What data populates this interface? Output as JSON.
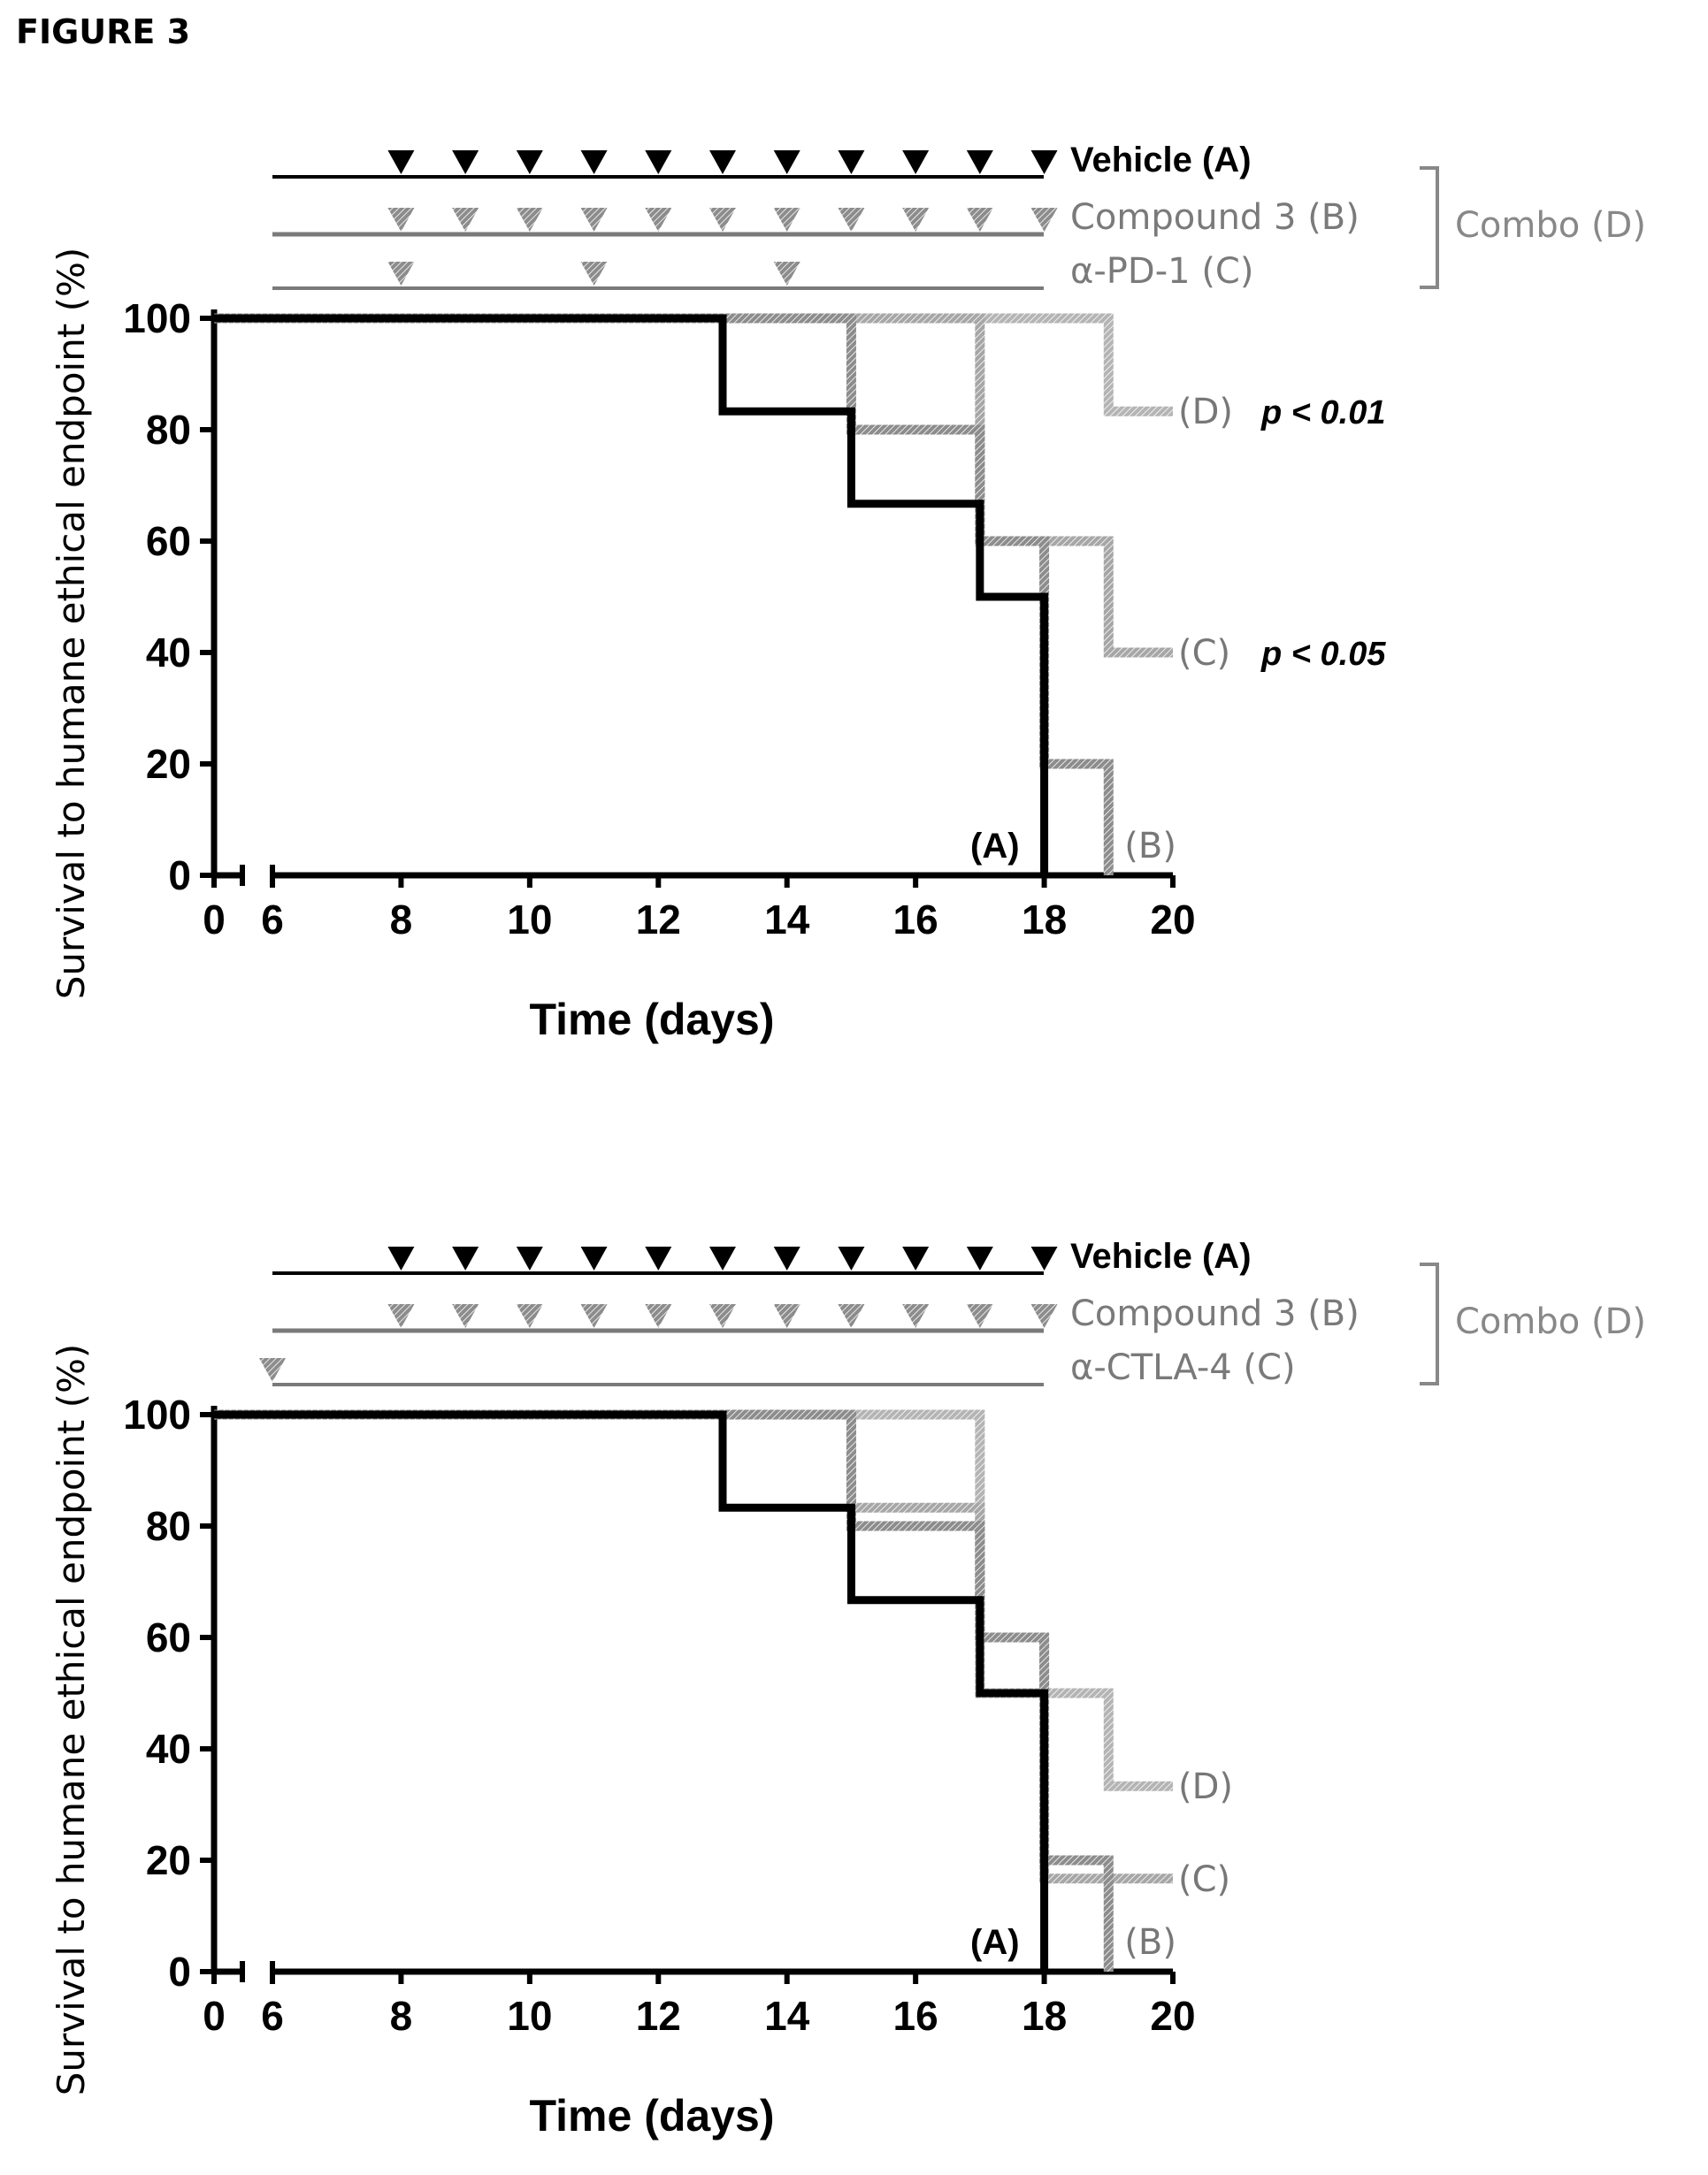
{
  "figure_title": "FIGURE 3",
  "chart_data": [
    {
      "type": "line",
      "subtype": "kaplan-meier step",
      "ylabel": "Survival to humane ethical endpoint (%)",
      "xlabel": "Time (days)",
      "xticks": [
        "0",
        "6",
        "8",
        "10",
        "12",
        "14",
        "16",
        "18",
        "20"
      ],
      "yticks": [
        "0",
        "20",
        "40",
        "60",
        "80",
        "100"
      ],
      "ylim": [
        0,
        100
      ],
      "xlim": [
        0,
        20
      ],
      "axis_break_between": [
        0,
        6
      ],
      "grid": false,
      "dosing": [
        {
          "label": "Vehicle (A)",
          "days": [
            8,
            9,
            10,
            11,
            12,
            13,
            14,
            15,
            16,
            17,
            18
          ],
          "color": "#000000"
        },
        {
          "label": "Compound 3 (B)",
          "days": [
            8,
            9,
            10,
            11,
            12,
            13,
            14,
            15,
            16,
            17,
            18
          ],
          "color": "#7a7a7a"
        },
        {
          "label": "α-PD-1 (C)",
          "days": [
            8,
            11,
            14
          ],
          "color": "#7a7a7a"
        }
      ],
      "combo_label": "Combo (D)",
      "series": [
        {
          "label": "(A)",
          "color": "#000000",
          "x": [
            0,
            13,
            15,
            17,
            18
          ],
          "y": [
            100,
            83.3,
            66.7,
            50,
            0
          ]
        },
        {
          "label": "(B)",
          "color": "#8c8c8c",
          "x": [
            0,
            15,
            17,
            18,
            19
          ],
          "y": [
            100,
            80,
            60,
            20,
            0
          ]
        },
        {
          "label": "(C)",
          "color": "#a6a6a6",
          "x": [
            0,
            17,
            19
          ],
          "y": [
            100,
            60,
            40
          ],
          "end_x": 20
        },
        {
          "label": "(D)",
          "color": "#b4b4b4",
          "x": [
            0,
            19
          ],
          "y": [
            100,
            83.3
          ],
          "end_x": 20
        }
      ],
      "annotations": [
        {
          "series": "(D)",
          "text": "p < 0.01"
        },
        {
          "series": "(C)",
          "text": "p < 0.05"
        }
      ]
    },
    {
      "type": "line",
      "subtype": "kaplan-meier step",
      "ylabel": "Survival to humane ethical endpoint (%)",
      "xlabel": "Time (days)",
      "xticks": [
        "0",
        "6",
        "8",
        "10",
        "12",
        "14",
        "16",
        "18",
        "20"
      ],
      "yticks": [
        "0",
        "20",
        "40",
        "60",
        "80",
        "100"
      ],
      "ylim": [
        0,
        100
      ],
      "xlim": [
        0,
        20
      ],
      "axis_break_between": [
        0,
        6
      ],
      "grid": false,
      "dosing": [
        {
          "label": "Vehicle (A)",
          "days": [
            8,
            9,
            10,
            11,
            12,
            13,
            14,
            15,
            16,
            17,
            18
          ],
          "color": "#000000"
        },
        {
          "label": "Compound 3 (B)",
          "days": [
            8,
            9,
            10,
            11,
            12,
            13,
            14,
            15,
            16,
            17,
            18
          ],
          "color": "#7a7a7a"
        },
        {
          "label": "α-CTLA-4 (C)",
          "days": [
            6
          ],
          "color": "#7a7a7a"
        }
      ],
      "combo_label": "Combo (D)",
      "series": [
        {
          "label": "(A)",
          "color": "#000000",
          "x": [
            0,
            13,
            15,
            17,
            18
          ],
          "y": [
            100,
            83.3,
            66.7,
            50,
            0
          ]
        },
        {
          "label": "(B)",
          "color": "#8c8c8c",
          "x": [
            0,
            15,
            17,
            18,
            19
          ],
          "y": [
            100,
            80,
            60,
            20,
            0
          ]
        },
        {
          "label": "(C)",
          "color": "#a6a6a6",
          "x": [
            0,
            15,
            17,
            18
          ],
          "y": [
            100,
            83.3,
            50,
            16.7
          ],
          "end_x": 20
        },
        {
          "label": "(D)",
          "color": "#b4b4b4",
          "x": [
            0,
            17,
            18,
            19
          ],
          "y": [
            100,
            60,
            50,
            33.3
          ],
          "end_x": 20
        }
      ],
      "annotations": []
    }
  ]
}
